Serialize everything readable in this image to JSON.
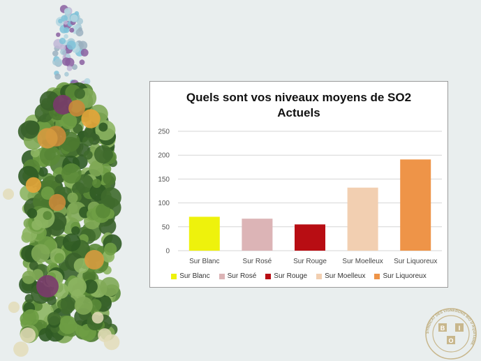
{
  "chart_data": {
    "type": "bar",
    "title": "Quels sont vos niveaux moyens de SO2",
    "subtitle": "Actuels",
    "categories": [
      "Sur Blanc",
      "Sur Rosé",
      "Sur Rouge",
      "Sur Moelleux",
      "Sur Liquoreux"
    ],
    "values": [
      71,
      67,
      55,
      132,
      191
    ],
    "colors": [
      "#eef20c",
      "#dcb4b6",
      "#b80d13",
      "#f2cfb1",
      "#ee9448"
    ],
    "yticks": [
      0,
      50,
      100,
      150,
      200,
      250
    ],
    "ylim": [
      0,
      250
    ],
    "grid": true,
    "legend_position": "bottom"
  },
  "branding": {
    "seal": "syndicat-seal-icon",
    "seal_text": "SYNDICAT DES VIGNERONS BIO D'AQUITAINE",
    "seal_letters": [
      "B",
      "I",
      "O"
    ]
  },
  "decoration": {
    "bottle_icon": "vine-leaf-bottle-illustration"
  }
}
